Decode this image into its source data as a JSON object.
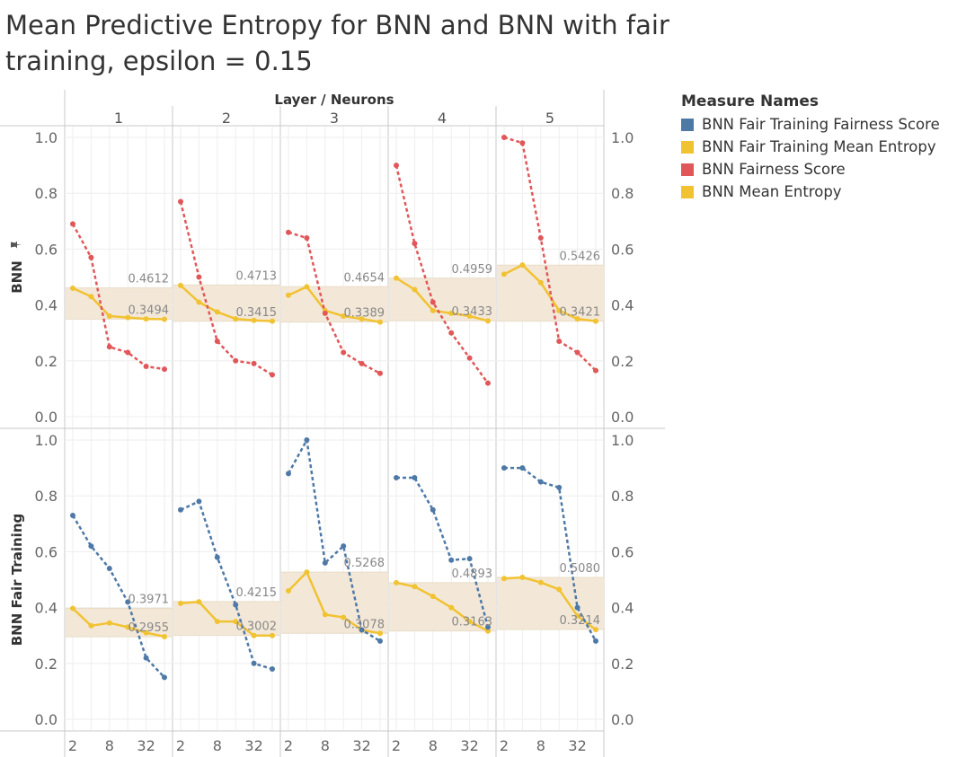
{
  "title": "Mean Predictive Entropy for BNN and BNN with fair training, epsilon = 0.15",
  "legend": {
    "title": "Measure Names",
    "items": [
      {
        "label": "BNN Fair Training Fairness Score",
        "color": "#4e79a7"
      },
      {
        "label": "BNN Fair Training Mean Entropy",
        "color": "#f1c232"
      },
      {
        "label": "BNN Fairness Score",
        "color": "#e15759"
      },
      {
        "label": "BNN Mean Entropy",
        "color": "#f1c232"
      }
    ]
  },
  "chart_data": {
    "type": "line",
    "column_header": "Layer / Neurons",
    "columns": [
      "1",
      "2",
      "3",
      "4",
      "5"
    ],
    "rows": [
      "BNN",
      "BNN Fair Training"
    ],
    "x_ticks": [
      "2",
      "8",
      "32"
    ],
    "x_values": [
      2,
      4,
      8,
      16,
      32,
      64
    ],
    "x_scale": "log2",
    "y_ticks": [
      "0.0",
      "0.2",
      "0.4",
      "0.6",
      "0.8",
      "1.0"
    ],
    "ylim": [
      0,
      1
    ],
    "grid": true,
    "legend_position": "right",
    "band_color": "#f3e8d8",
    "panels": [
      {
        "row": 0,
        "col": 0,
        "fairness": [
          0.69,
          0.57,
          0.25,
          0.23,
          0.18,
          0.17
        ],
        "entropy": [
          0.46,
          0.43,
          0.36,
          0.355,
          0.35,
          0.349
        ],
        "fairness_color": "#e15759",
        "band_max": "0.4612",
        "band_min": "0.3494"
      },
      {
        "row": 0,
        "col": 1,
        "fairness": [
          0.77,
          0.5,
          0.27,
          0.2,
          0.19,
          0.15
        ],
        "entropy": [
          0.47,
          0.41,
          0.375,
          0.35,
          0.345,
          0.342
        ],
        "fairness_color": "#e15759",
        "band_max": "0.4713",
        "band_min": "0.3415"
      },
      {
        "row": 0,
        "col": 2,
        "fairness": [
          0.66,
          0.64,
          0.37,
          0.23,
          0.19,
          0.155
        ],
        "entropy": [
          0.435,
          0.465,
          0.38,
          0.36,
          0.35,
          0.339
        ],
        "fairness_color": "#e15759",
        "band_max": "0.4654",
        "band_min": "0.3389"
      },
      {
        "row": 0,
        "col": 3,
        "fairness": [
          0.9,
          0.62,
          0.41,
          0.3,
          0.21,
          0.12
        ],
        "entropy": [
          0.496,
          0.455,
          0.38,
          0.37,
          0.36,
          0.343
        ],
        "fairness_color": "#e15759",
        "band_max": "0.4959",
        "band_min": "0.3433"
      },
      {
        "row": 0,
        "col": 4,
        "fairness": [
          1.0,
          0.98,
          0.64,
          0.27,
          0.23,
          0.165
        ],
        "entropy": [
          0.51,
          0.543,
          0.48,
          0.38,
          0.35,
          0.342
        ],
        "fairness_color": "#e15759",
        "band_max": "0.5426",
        "band_min": "0.3421"
      },
      {
        "row": 1,
        "col": 0,
        "fairness": [
          0.73,
          0.62,
          0.54,
          0.42,
          0.22,
          0.15
        ],
        "entropy": [
          0.397,
          0.335,
          0.345,
          0.33,
          0.31,
          0.296
        ],
        "fairness_color": "#4e79a7",
        "band_max": "0.3971",
        "band_min": "0.2955"
      },
      {
        "row": 1,
        "col": 1,
        "fairness": [
          0.75,
          0.78,
          0.58,
          0.41,
          0.2,
          0.18
        ],
        "entropy": [
          0.415,
          0.421,
          0.35,
          0.35,
          0.3,
          0.3
        ],
        "fairness_color": "#4e79a7",
        "band_max": "0.4215",
        "band_min": "0.3002"
      },
      {
        "row": 1,
        "col": 2,
        "fairness": [
          0.88,
          1.0,
          0.56,
          0.62,
          0.32,
          0.28
        ],
        "entropy": [
          0.46,
          0.527,
          0.375,
          0.365,
          0.32,
          0.308
        ],
        "fairness_color": "#4e79a7",
        "band_max": "0.5268",
        "band_min": "0.3078"
      },
      {
        "row": 1,
        "col": 3,
        "fairness": [
          0.865,
          0.865,
          0.75,
          0.57,
          0.575,
          0.33
        ],
        "entropy": [
          0.489,
          0.475,
          0.44,
          0.4,
          0.35,
          0.316
        ],
        "fairness_color": "#4e79a7",
        "band_max": "0.4893",
        "band_min": "0.3163"
      },
      {
        "row": 1,
        "col": 4,
        "fairness": [
          0.9,
          0.9,
          0.85,
          0.83,
          0.4,
          0.28
        ],
        "entropy": [
          0.504,
          0.508,
          0.49,
          0.465,
          0.37,
          0.321
        ],
        "fairness_color": "#4e79a7",
        "band_max": "0.5080",
        "band_min": "0.3214"
      }
    ]
  }
}
